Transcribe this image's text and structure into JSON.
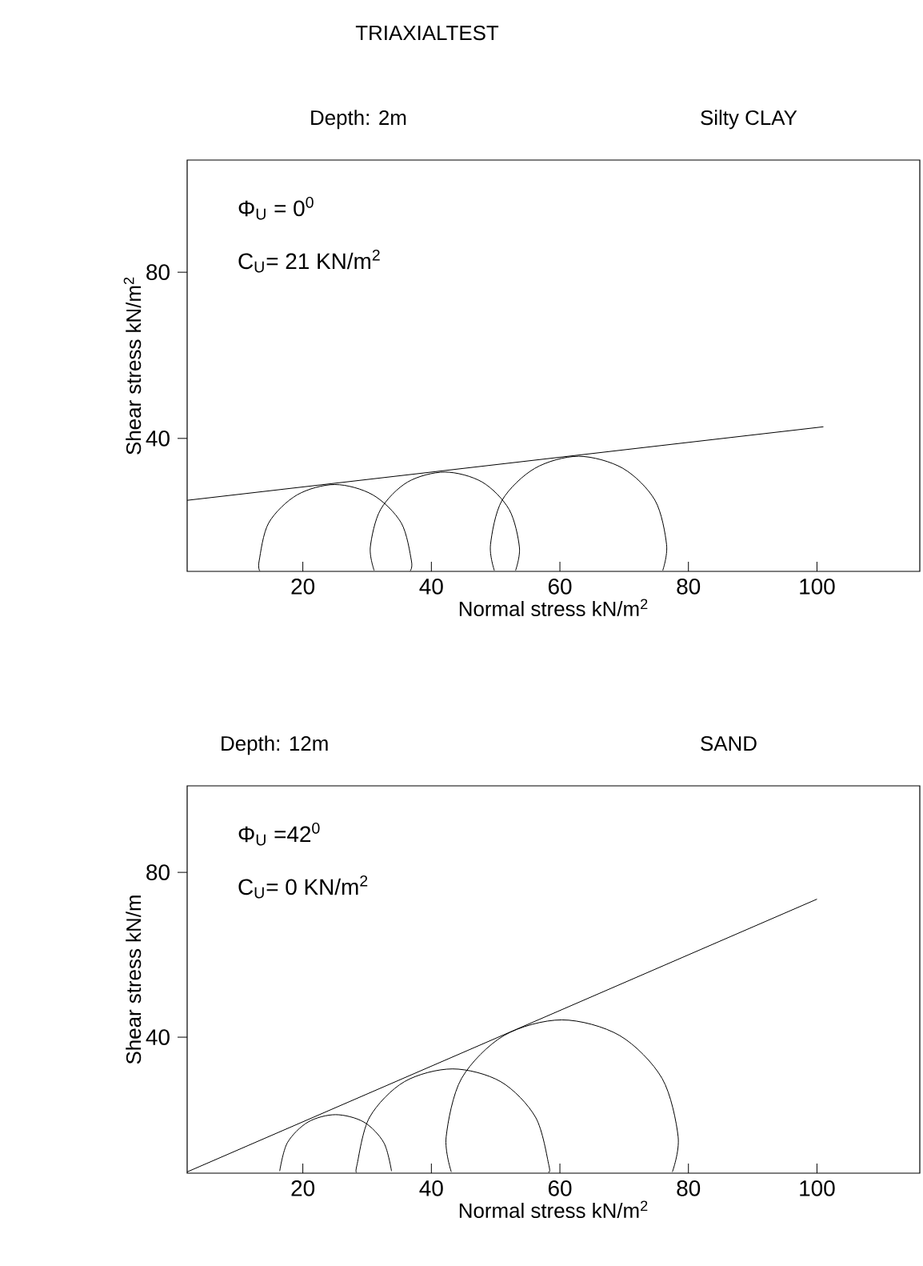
{
  "chart_data": [
    {
      "type": "line",
      "title": "TRIAXIALTEST",
      "subtitle": "Depth: 2m",
      "xlabel": "Normal stress kN/m$^{2}$",
      "ylabel": "Shear stress kN/m$^{2}$",
      "annotations": [
        "Silty CLAY",
        "Φ$_{U}$ = 0$^{0}$",
        "C$_{U}$= 21  KN/m$^{2}$"
      ],
      "xlim": [
        2,
        116
      ],
      "ylim": [
        8,
        107
      ],
      "xticks": [
        20,
        40,
        60,
        80,
        100
      ],
      "yticks": [
        40,
        80
      ],
      "series": [
        {
          "color": "#000000",
          "x": [
            2,
            101
          ],
          "values": [
            25.1,
            42.8
          ]
        },
        {
          "color": "#000000",
          "x": [
            36.7,
            36.9,
            35.3,
            30.9,
            25.0,
            19.1,
            14.7,
            13.2,
            13.3
          ],
          "values": [
            8.1,
            10.5,
            19.7,
            26.4,
            28.9,
            26.4,
            19.7,
            10.5,
            8.1
          ]
        },
        {
          "color": "#000000",
          "x": [
            53.1,
            53.7,
            52.1,
            47.9,
            42.1,
            36.3,
            32.1,
            30.5,
            31.1
          ],
          "values": [
            8.2,
            13.8,
            22.9,
            29.5,
            31.9,
            29.5,
            22.9,
            13.8,
            8.2
          ]
        },
        {
          "color": "#000000",
          "x": [
            76.0,
            76.6,
            74.8,
            69.8,
            62.9,
            56.1,
            51.0,
            49.2,
            49.8
          ],
          "values": [
            8.2,
            14.4,
            25.1,
            32.8,
            35.7,
            32.8,
            25.1,
            14.4,
            8.2
          ]
        }
      ]
    },
    {
      "type": "line",
      "subtitle": "Depth: 12m",
      "xlabel": "Normal stress kN/m$^{2}$",
      "ylabel": "Shear stress kN/m",
      "annotations": [
        "SAND",
        "Φ$_{U}$ =42$^{0}$",
        "C$_{U}$= 0  KN/m$^{2}$"
      ],
      "xlim": [
        2,
        116
      ],
      "ylim": [
        7,
        101
      ],
      "xticks": [
        20,
        40,
        60,
        80,
        100
      ],
      "yticks": [
        40,
        80
      ],
      "series": [
        {
          "color": "#000000",
          "x": [
            2,
            100
          ],
          "values": [
            7.3,
            73.5
          ]
        },
        {
          "color": "#000000",
          "x": [
            33.8,
            32.6,
            29.5,
            25.1,
            20.8,
            17.6,
            16.4
          ],
          "values": [
            7.5,
            14.4,
            19.4,
            21.2,
            19.4,
            14.4,
            7.5
          ]
        },
        {
          "color": "#000000",
          "x": [
            58.2,
            58.3,
            56.2,
            50.8,
            43.3,
            35.8,
            30.4,
            28.4,
            28.4
          ],
          "values": [
            7.3,
            8.8,
            20.6,
            29.2,
            32.3,
            29.2,
            20.6,
            8.8,
            7.3
          ]
        },
        {
          "color": "#000000",
          "x": [
            77.5,
            78.4,
            75.9,
            69.3,
            60.3,
            51.3,
            44.7,
            42.3,
            43.1
          ],
          "values": [
            7.3,
            15.8,
            30.0,
            40.4,
            44.2,
            40.4,
            30.0,
            15.8,
            7.3
          ]
        }
      ]
    }
  ]
}
